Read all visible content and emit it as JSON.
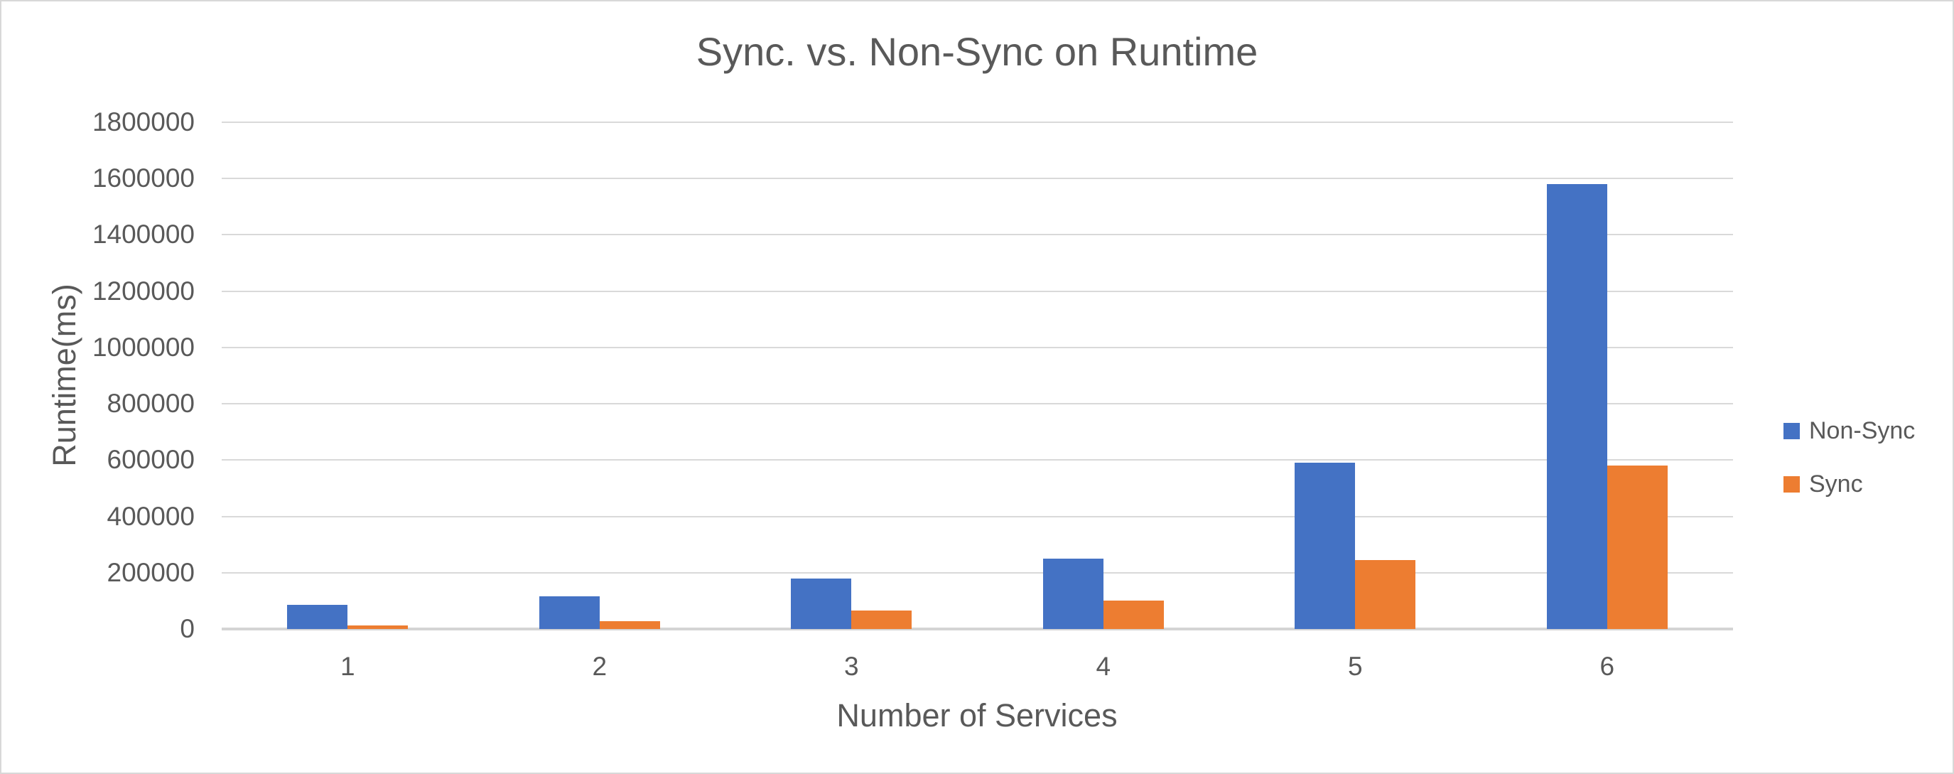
{
  "window": {
    "background_color": "#ffffff",
    "border_color": "#d8d8d8",
    "text_color": "#595959",
    "gridline_color": "#d9d9d9",
    "axis_line_color": "#d4d4d4"
  },
  "chart_data": {
    "type": "bar",
    "title": "Sync. vs. Non-Sync on Runtime",
    "xlabel": "Number of Services",
    "ylabel": "Runtime(ms)",
    "categories": [
      "1",
      "2",
      "3",
      "4",
      "5",
      "6"
    ],
    "series": [
      {
        "name": "Non-Sync",
        "color": "#4472C4",
        "values": [
          85000,
          115000,
          180000,
          250000,
          590000,
          1580000
        ]
      },
      {
        "name": "Sync",
        "color": "#ED7D31",
        "values": [
          13000,
          27000,
          65000,
          100000,
          245000,
          580000
        ]
      }
    ],
    "ylim": [
      0,
      1800000
    ],
    "y_ticks": [
      0,
      200000,
      400000,
      600000,
      800000,
      1000000,
      1200000,
      1400000,
      1600000,
      1800000
    ],
    "grid": "horizontal",
    "legend_position": "right-middle"
  },
  "legend": {
    "items": [
      {
        "label": "Non-Sync"
      },
      {
        "label": "Sync"
      }
    ]
  }
}
